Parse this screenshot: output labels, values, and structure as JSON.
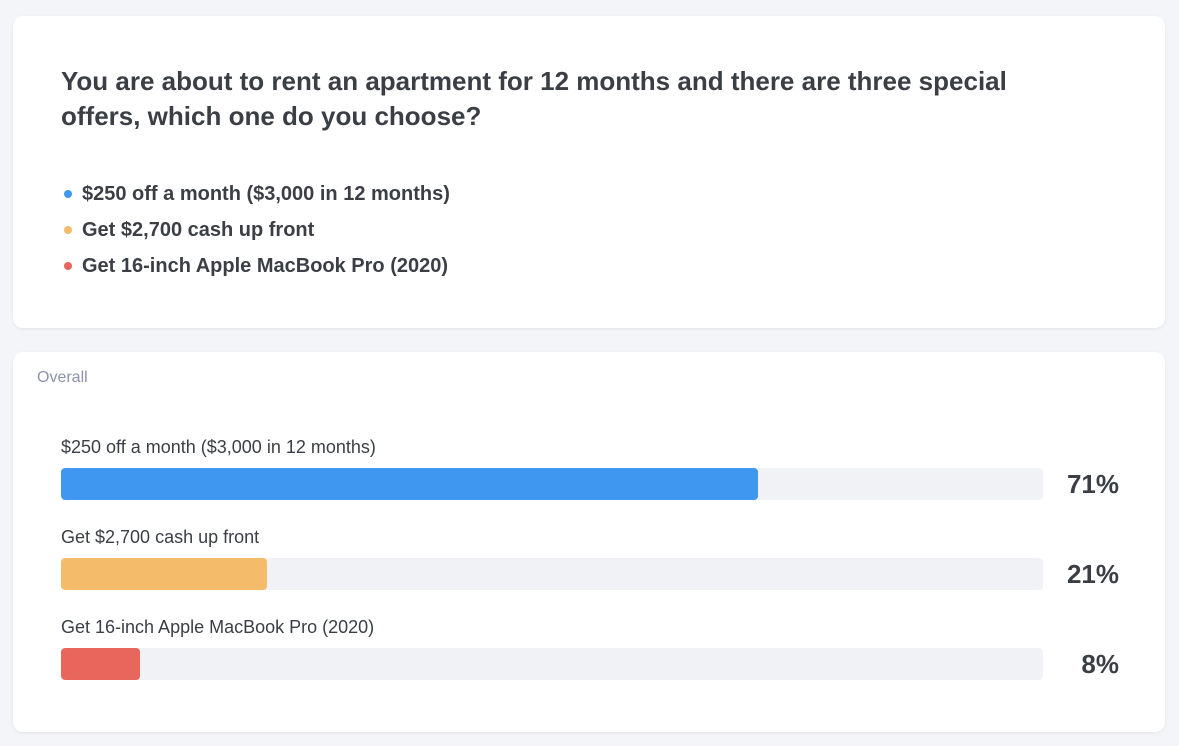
{
  "question": {
    "text": "You are about to rent an apartment for 12 months and there are three special offers, which one do you choose?",
    "options": [
      {
        "label": "$250 off a month ($3,000 in 12 months)",
        "color": "#3f97ef"
      },
      {
        "label": "Get $2,700 cash up front",
        "color": "#f4bb6b"
      },
      {
        "label": "Get 16-inch Apple MacBook Pro (2020)",
        "color": "#e8665c"
      }
    ]
  },
  "results": {
    "section_label": "Overall",
    "items": [
      {
        "label": "$250 off a month ($3,000 in 12 months)",
        "percent_label": "71%",
        "percent": 71,
        "color": "#3f97ef"
      },
      {
        "label": "Get $2,700 cash up front",
        "percent_label": "21%",
        "percent": 21,
        "color": "#f4bb6b"
      },
      {
        "label": "Get 16-inch Apple MacBook Pro (2020)",
        "percent_label": "8%",
        "percent": 8,
        "color": "#e8665c"
      }
    ]
  }
}
